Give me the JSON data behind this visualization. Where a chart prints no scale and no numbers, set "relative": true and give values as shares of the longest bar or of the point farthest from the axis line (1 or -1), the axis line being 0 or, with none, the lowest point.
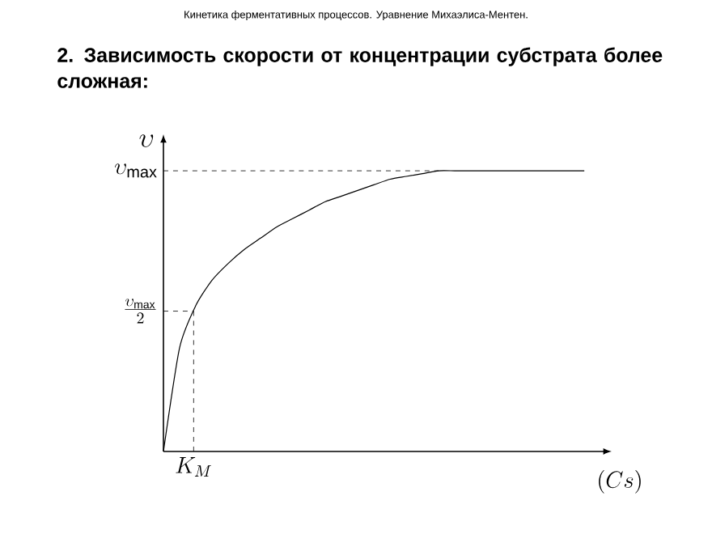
{
  "chart_data": {
    "type": "line",
    "title": "Кинетика ферментативных процессов. Уравнение Михаэлиса-Ментен.",
    "subtitle": "2.  Зависимость скорости от концентрации субстрата более сложная:",
    "xlabel": "(Cs)",
    "ylabel": "\\upsilon",
    "relative": true,
    "color": "#000000",
    "categories": [
      null,
      null,
      null,
      null,
      null,
      null,
      null,
      null,
      null,
      null,
      null,
      null,
      null,
      null,
      null,
      null,
      null,
      null,
      null,
      null,
      null,
      null,
      null,
      null,
      null,
      null,
      null
    ],
    "values": [
      0,
      0.37,
      0.52,
      0.61,
      0.67,
      0.72,
      0.76,
      0.8,
      0.83,
      0.86,
      0.89,
      0.91,
      0.93,
      0.95,
      0.97,
      0.98,
      0.99,
      1,
      1,
      1,
      1,
      1,
      1,
      1,
      1,
      1,
      1
    ],
    "ref_lines": [
      {
        "axis": "y",
        "value": 1,
        "label": "\\upsilon_{\\max}",
        "line_style": "dashed"
      },
      {
        "axis": "y",
        "value": 0.5,
        "label": "\\frac{\\upsilon_{\\max}}{2}",
        "line_style": "dashed"
      }
    ],
    "annotations": [
      "K_M"
    ]
  }
}
